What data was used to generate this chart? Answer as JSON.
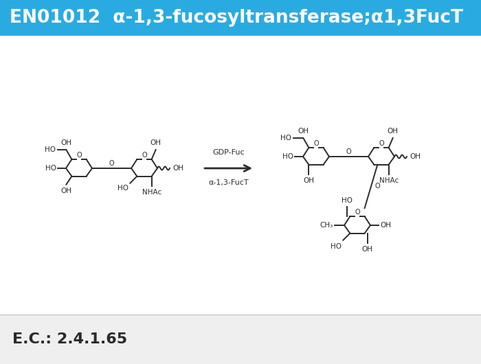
{
  "title": "EN01012  α-1,3-fucosyltransferase;α1,3FucT",
  "title_bg_color": "#29ABE2",
  "title_text_color": "#FFFFFF",
  "title_fontsize": 19,
  "ec_label": "E.C.: 2.4.1.65",
  "ec_fontsize": 16,
  "ec_text_color": "#2a2a2a",
  "bg_color": "#FFFFFF",
  "bottom_bg_color": "#EFEFEF",
  "arrow_label_top": "GDP-Fuc",
  "arrow_label_bottom": "α-1,3-FucT",
  "fig_width": 7.0,
  "fig_height": 5.3,
  "dpi": 100
}
